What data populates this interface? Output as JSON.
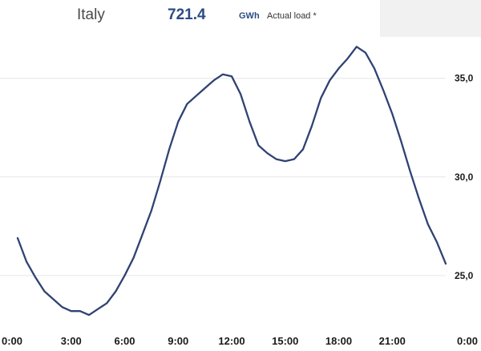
{
  "header": {
    "region": "Italy",
    "total": "721.4",
    "unit": "GWh",
    "series_label": "Actual load *"
  },
  "chart_data": {
    "type": "line",
    "title": "",
    "xlabel": "",
    "ylabel": "",
    "x_ticks": [
      "0:00",
      "3:00",
      "6:00",
      "9:00",
      "12:00",
      "15:00",
      "18:00",
      "21:00",
      "0:00"
    ],
    "y_ticks": [
      "25,0",
      "30,0",
      "35,0"
    ],
    "y_tick_values": [
      25,
      30,
      35
    ],
    "xlim": [
      0,
      24
    ],
    "ylim": [
      22.8,
      37.1
    ],
    "grid": "horizontal",
    "line_color": "#2f4273",
    "series": [
      {
        "name": "Actual load *",
        "x": [
          0,
          0.5,
          1,
          1.5,
          2,
          2.5,
          3,
          3.5,
          4,
          4.5,
          5,
          5.5,
          6,
          6.5,
          7,
          7.5,
          8,
          8.5,
          9,
          9.5,
          10,
          10.5,
          11,
          11.5,
          12,
          12.5,
          13,
          13.5,
          14,
          14.5,
          15,
          15.5,
          16,
          16.5,
          17,
          17.5,
          18,
          18.5,
          19,
          19.5,
          20,
          20.5,
          21,
          21.5,
          22,
          22.5,
          23,
          23.5,
          24
        ],
        "y": [
          26.9,
          25.7,
          24.9,
          24.2,
          23.8,
          23.4,
          23.2,
          23.2,
          23.0,
          23.3,
          23.6,
          24.2,
          25.0,
          25.9,
          27.1,
          28.3,
          29.8,
          31.4,
          32.8,
          33.7,
          34.1,
          34.5,
          34.9,
          35.2,
          35.1,
          34.2,
          32.8,
          31.6,
          31.2,
          30.9,
          30.8,
          30.9,
          31.4,
          32.6,
          34.0,
          34.9,
          35.5,
          36.0,
          36.6,
          36.3,
          35.5,
          34.4,
          33.2,
          31.8,
          30.3,
          28.9,
          27.6,
          26.7,
          25.6
        ]
      }
    ]
  }
}
